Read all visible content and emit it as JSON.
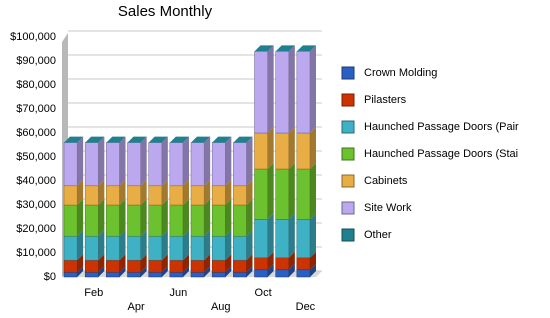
{
  "chart_data": {
    "type": "stacked-bar",
    "title": "Sales Monthly",
    "categories": [
      null,
      "Feb",
      null,
      "Apr",
      null,
      "Jun",
      null,
      "Aug",
      null,
      "Oct",
      null,
      "Dec"
    ],
    "series": [
      {
        "name": "Crown Molding",
        "color": "#2a5fc4",
        "values": [
          2000,
          2000,
          2000,
          2000,
          2000,
          2000,
          2000,
          2000,
          2000,
          3000,
          3000,
          3000
        ]
      },
      {
        "name": "Pilasters",
        "color": "#cc3300",
        "values": [
          5000,
          5000,
          5000,
          5000,
          5000,
          5000,
          5000,
          5000,
          5000,
          5000,
          5000,
          5000
        ]
      },
      {
        "name": "Haunched Passage Doors (Pair",
        "color": "#3fb1c4",
        "values": [
          10000,
          10000,
          10000,
          10000,
          10000,
          10000,
          10000,
          10000,
          10000,
          16000,
          16000,
          16000
        ]
      },
      {
        "name": "Haunched Passage Doors (Stai",
        "color": "#6cc12e",
        "values": [
          13000,
          13000,
          13000,
          13000,
          13000,
          13000,
          13000,
          13000,
          13000,
          21000,
          21000,
          21000
        ]
      },
      {
        "name": "Cabinets",
        "color": "#e9ad45",
        "values": [
          8000,
          8000,
          8000,
          8000,
          8000,
          8000,
          8000,
          8000,
          8000,
          15000,
          15000,
          15000
        ]
      },
      {
        "name": "Site Work",
        "color": "#bba8ee",
        "values": [
          18000,
          18000,
          18000,
          18000,
          18000,
          18000,
          18000,
          18000,
          18000,
          34000,
          34000,
          34000
        ]
      },
      {
        "name": "Other",
        "color": "#21808f",
        "values": [
          0,
          0,
          0,
          0,
          0,
          0,
          0,
          0,
          0,
          0,
          0,
          0
        ]
      }
    ],
    "ylim": [
      0,
      100000
    ],
    "yticks": [
      {
        "value": 0,
        "label": "$0"
      },
      {
        "value": 10000,
        "label": "$10,000"
      },
      {
        "value": 20000,
        "label": "$20,000"
      },
      {
        "value": 30000,
        "label": "$30,000"
      },
      {
        "value": 40000,
        "label": "$40,000"
      },
      {
        "value": 50000,
        "label": "$50,000"
      },
      {
        "value": 60000,
        "label": "$60,000"
      },
      {
        "value": 70000,
        "label": "$70,000"
      },
      {
        "value": 80000,
        "label": "$80,000"
      },
      {
        "value": 90000,
        "label": "$90,000"
      },
      {
        "value": 100000,
        "label": "$100,000"
      }
    ],
    "grid": true
  }
}
